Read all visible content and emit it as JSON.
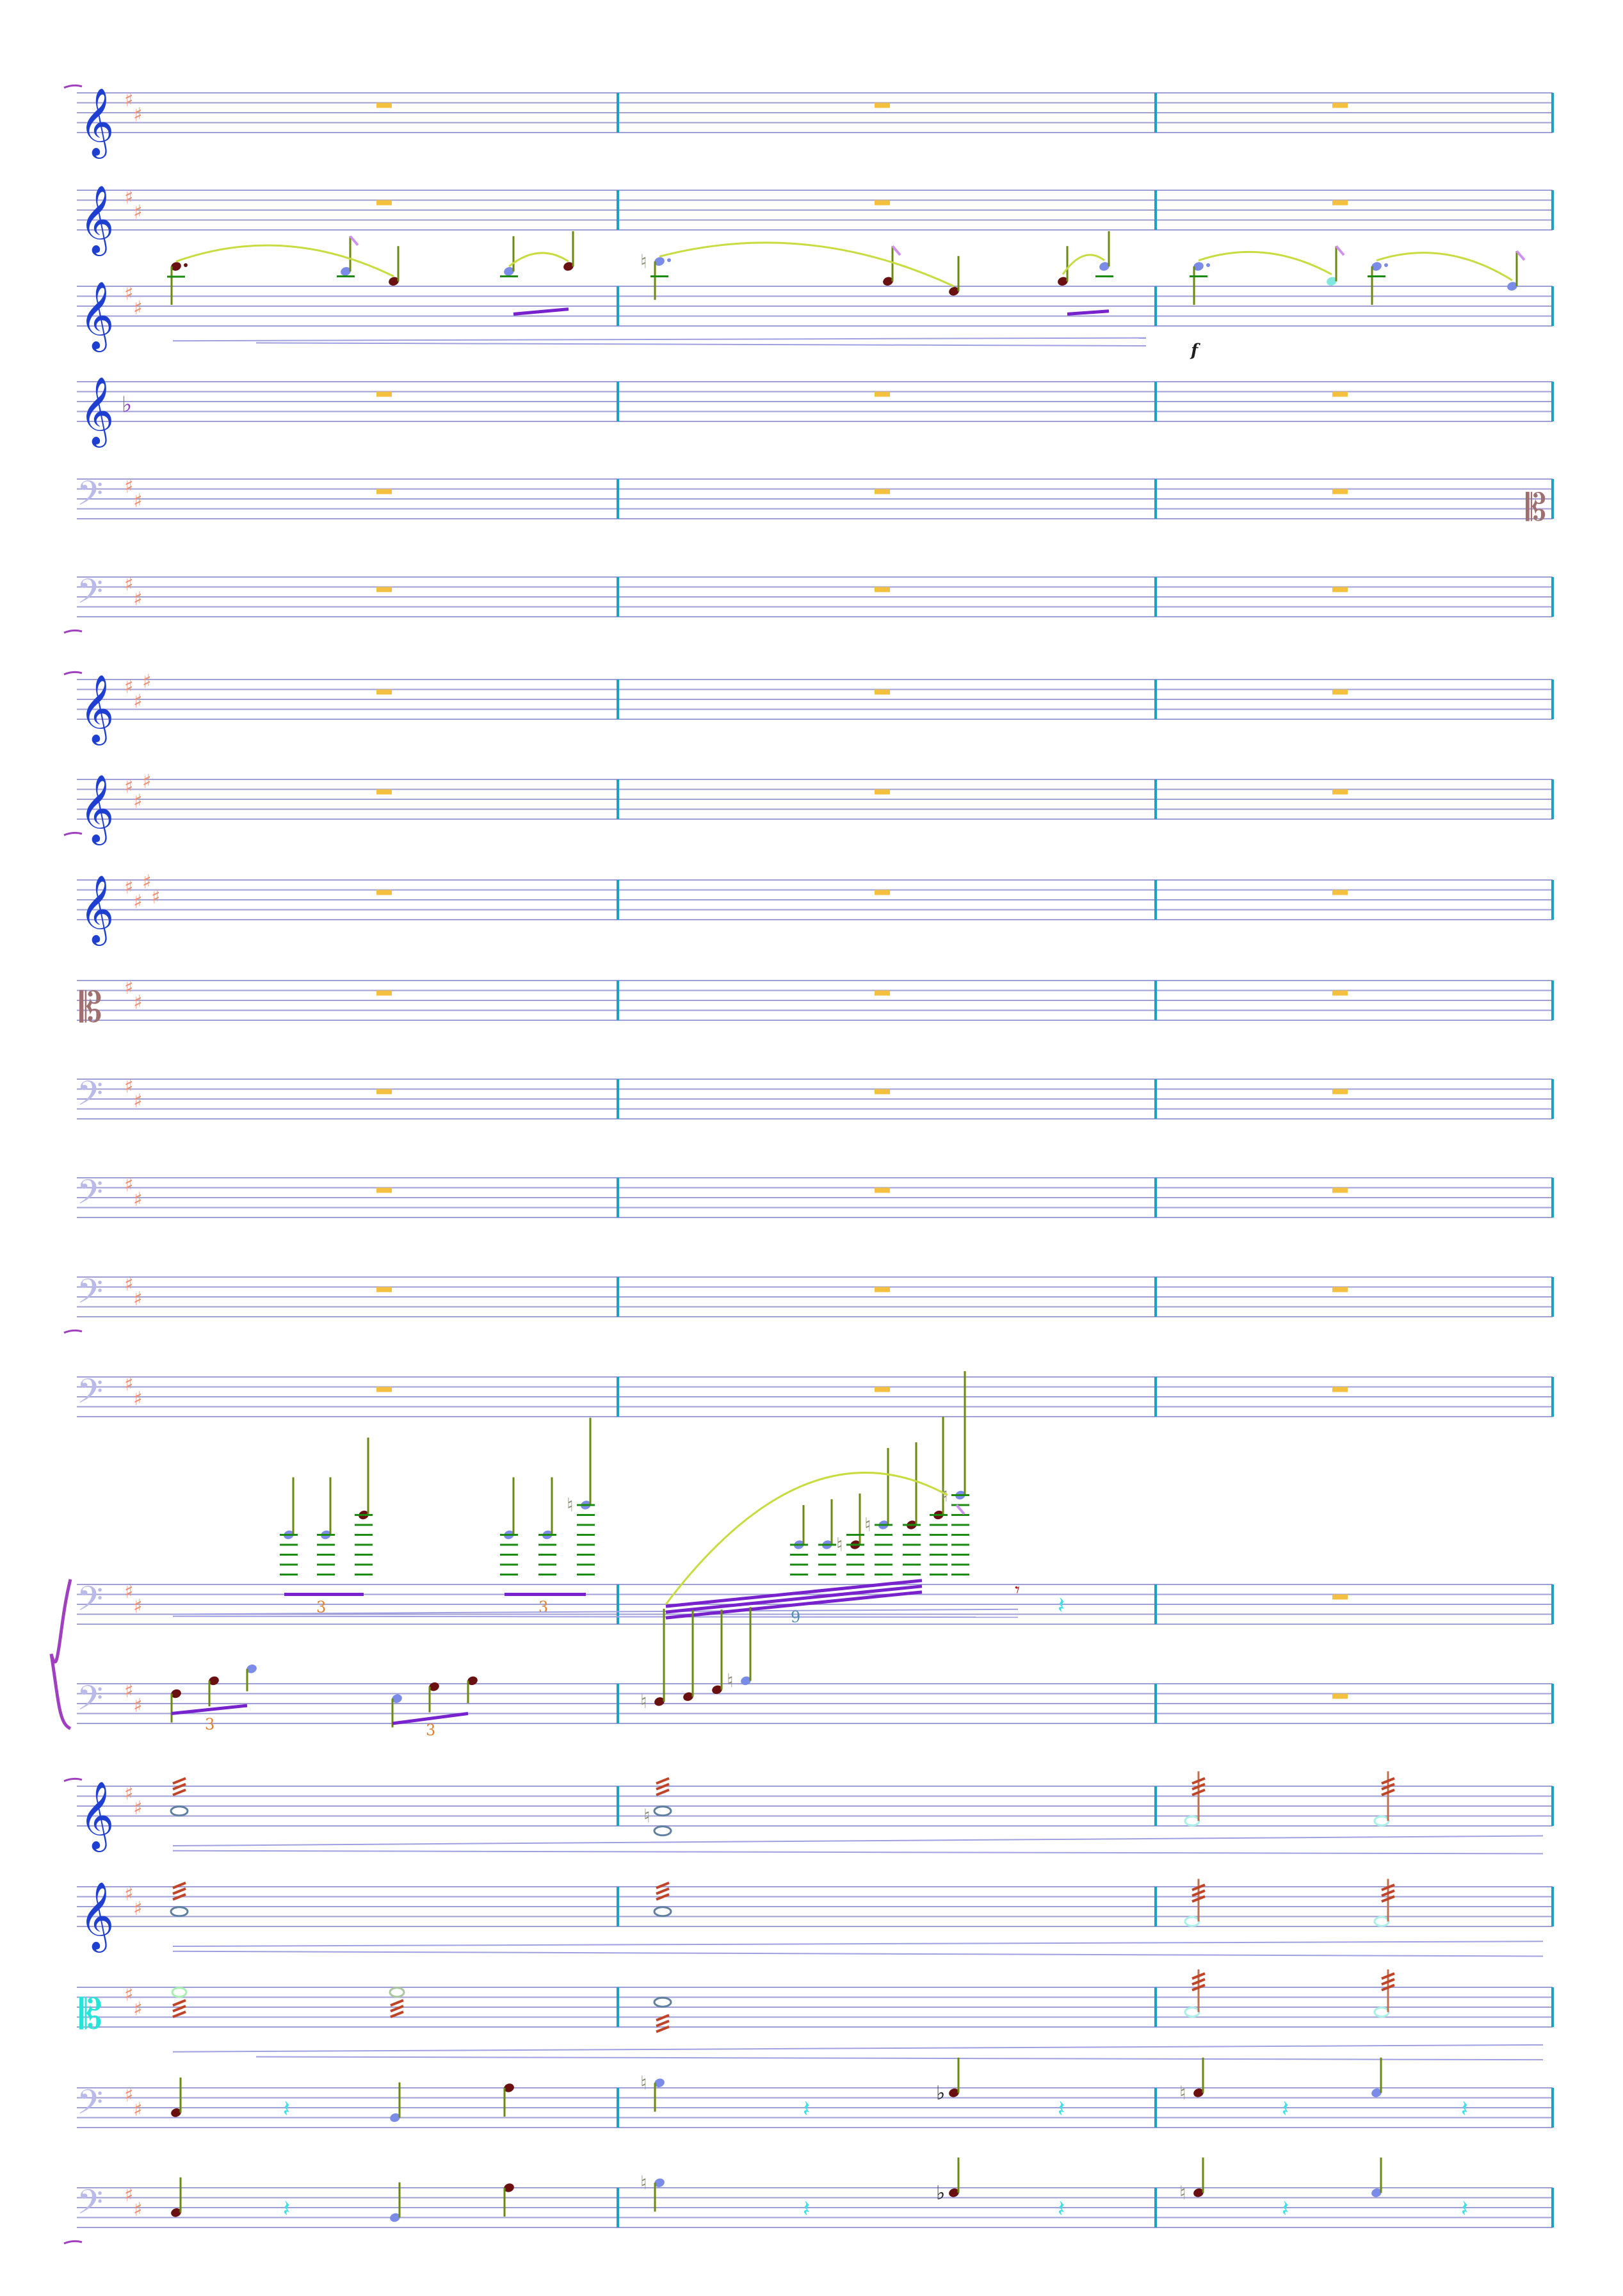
{
  "document": {
    "type": "orchestral-score-page",
    "measures_per_system": 3,
    "dynamic_marking": "f",
    "tuplet_labels": [
      "3",
      "3",
      "3",
      "3",
      "9"
    ]
  },
  "colors": {
    "staff_line": "#9f9fd6",
    "barline": "#1aa3c0",
    "treble_clef": "#1f3fd0",
    "bass_clef": "#b9b9ea",
    "alto_clef": "#a07070",
    "alto_clef_alt": "#22e6d8",
    "key_sig": "#ef8f70",
    "flat_key": "#8a40c0",
    "rest_whole": "#f3c040",
    "slur": "#c8dc40",
    "beam": "#7722cc",
    "stem": "#6a8a10",
    "note_dark": "#6a1010",
    "note_blue": "#7a8ce8",
    "ledger": "#1a8a10",
    "tremolo": "#c04428",
    "rest_quarter": "#40e0e8",
    "hairline": "#a0a0e0",
    "tuplet": "#e08030",
    "natural": "#8a8a70"
  },
  "staves": [
    {
      "name": "staff-1",
      "clef": "treble",
      "key": "sharps-2"
    },
    {
      "name": "staff-2",
      "clef": "treble",
      "key": "sharps-2"
    },
    {
      "name": "staff-3",
      "clef": "treble",
      "key": "sharps-2"
    },
    {
      "name": "staff-4",
      "clef": "treble",
      "key": "flat-1"
    },
    {
      "name": "staff-5",
      "clef": "bass",
      "key": "sharps-2"
    },
    {
      "name": "staff-6",
      "clef": "bass",
      "key": "sharps-2"
    },
    {
      "name": "staff-7",
      "clef": "treble",
      "key": "sharps-3"
    },
    {
      "name": "staff-8",
      "clef": "treble",
      "key": "sharps-3"
    },
    {
      "name": "staff-9",
      "clef": "treble",
      "key": "sharps-4"
    },
    {
      "name": "staff-10",
      "clef": "alto",
      "key": "sharps-2"
    },
    {
      "name": "staff-11",
      "clef": "bass",
      "key": "sharps-2"
    },
    {
      "name": "staff-12",
      "clef": "bass",
      "key": "sharps-2"
    },
    {
      "name": "staff-13",
      "clef": "bass",
      "key": "sharps-2"
    },
    {
      "name": "staff-14",
      "clef": "bass",
      "key": "sharps-2"
    },
    {
      "name": "staff-15-piano-rh",
      "clef": "bass",
      "key": "sharps-2"
    },
    {
      "name": "staff-16-piano-lh",
      "clef": "bass",
      "key": "sharps-2"
    },
    {
      "name": "staff-17",
      "clef": "treble",
      "key": "sharps-2"
    },
    {
      "name": "staff-18",
      "clef": "treble",
      "key": "sharps-2"
    },
    {
      "name": "staff-19",
      "clef": "alto",
      "key": "sharps-2"
    },
    {
      "name": "staff-20",
      "clef": "bass",
      "key": "sharps-2"
    },
    {
      "name": "staff-21",
      "clef": "bass",
      "key": "sharps-2"
    }
  ]
}
